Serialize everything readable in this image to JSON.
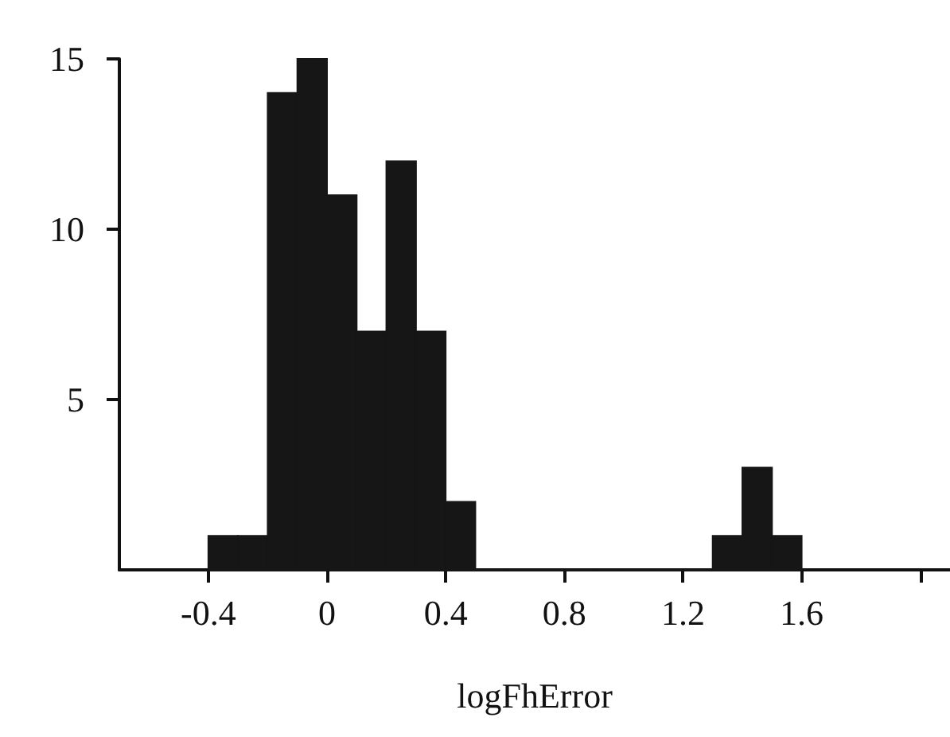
{
  "chart_data": {
    "type": "histogram",
    "xlabel": "logFhError",
    "bins": [
      -0.4,
      -0.3,
      -0.2,
      -0.1,
      0,
      0.1,
      0.2,
      0.3,
      0.4,
      0.5,
      0.6,
      0.7,
      0.8,
      0.9,
      1.0,
      1.1,
      1.2,
      1.3,
      1.4,
      1.5,
      1.6
    ],
    "values": [
      1,
      1,
      14,
      15,
      11,
      7,
      12,
      7,
      2,
      0,
      0,
      0,
      0,
      0,
      0,
      0,
      0,
      1,
      3,
      1
    ],
    "color": "#161616",
    "xlim": [
      -0.7,
      2.1
    ],
    "xticks": [
      -0.4,
      0,
      0.4,
      0.8,
      1.2,
      1.6,
      {
        "value": 2.0,
        "label": null
      }
    ],
    "ylim": [
      0,
      15
    ],
    "yticks": [
      5,
      10,
      15
    ],
    "grid": false
  }
}
